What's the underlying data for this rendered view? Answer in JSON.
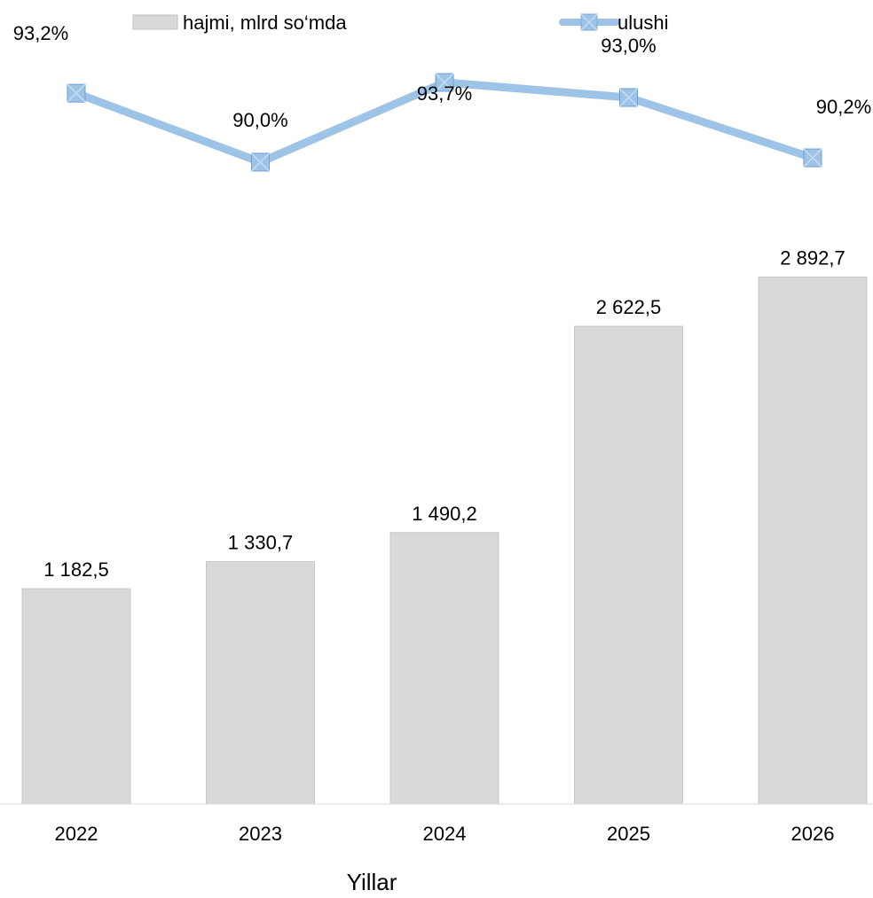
{
  "chart_data": {
    "type": "bar",
    "categories": [
      "2022",
      "2023",
      "2024",
      "2025",
      "2026"
    ],
    "xlabel": "Yillar",
    "grid": false,
    "legend_position": "top",
    "series": [
      {
        "name": "hajmi, mlrd so‘mda",
        "type": "bar",
        "axis": "primary",
        "color": "#d9d9d9",
        "values": [
          1182.5,
          1330.7,
          1490.2,
          2622.5,
          2892.7
        ],
        "labels": [
          "1 182,5",
          "1 330,7",
          "1 490,2",
          "2 622,5",
          "2 892,7"
        ]
      },
      {
        "name": "ulushi",
        "type": "line",
        "axis": "secondary",
        "color": "#9dc3e6",
        "marker": "square-x",
        "values": [
          93.2,
          90.0,
          93.7,
          93.0,
          90.2
        ],
        "labels": [
          "93,2%",
          "90,0%",
          "93,7%",
          "93,0%",
          "90,2%"
        ]
      }
    ]
  }
}
